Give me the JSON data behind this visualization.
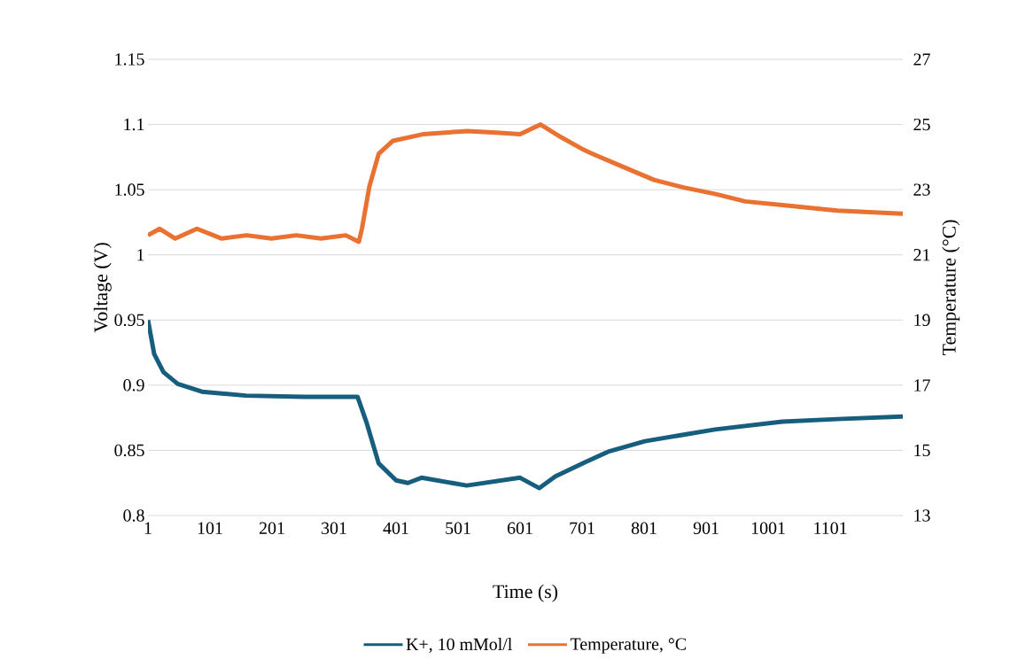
{
  "chart_data": {
    "type": "line",
    "xlabel": "Time (s)",
    "ylabel": "Voltage (V)",
    "y2label": "Temperature (°C)",
    "xlim": [
      1,
      1218
    ],
    "xticks": [
      1,
      101,
      201,
      301,
      401,
      501,
      601,
      701,
      801,
      901,
      1001,
      1101
    ],
    "ylim": [
      0.8,
      1.15
    ],
    "yticks": [
      0.8,
      0.85,
      0.9,
      0.95,
      1,
      1.05,
      1.1,
      1.15
    ],
    "y2lim": [
      13,
      27
    ],
    "y2ticks": [
      13,
      15,
      17,
      19,
      21,
      23,
      25,
      27
    ],
    "grid": "y",
    "legend": "bottom",
    "series": [
      {
        "name": "K+, 10 mMol/l",
        "color": "#175e7e",
        "x": [
          1,
          11,
          26,
          49,
          88,
          159,
          253,
          339,
          353,
          373,
          401,
          420,
          442,
          515,
          601,
          632,
          658,
          706,
          743,
          802,
          915,
          1024,
          1112,
          1218
        ],
        "values": [
          0.95,
          0.924,
          0.91,
          0.901,
          0.895,
          0.892,
          0.891,
          0.891,
          0.872,
          0.84,
          0.827,
          0.825,
          0.829,
          0.823,
          0.829,
          0.821,
          0.83,
          0.841,
          0.849,
          0.857,
          0.866,
          0.872,
          0.874,
          0.876
        ]
      },
      {
        "name": "Temperature, °C",
        "color": "#e97132",
        "axis": "y2",
        "x": [
          1,
          20,
          45,
          80,
          120,
          160,
          200,
          240,
          280,
          320,
          341,
          346,
          358,
          373,
          396,
          444,
          516,
          563,
          601,
          634,
          668,
          701,
          718,
          767,
          817,
          866,
          915,
          964,
          1038,
          1112,
          1218
        ],
        "values": [
          21.6,
          21.8,
          21.5,
          21.8,
          21.5,
          21.6,
          21.5,
          21.6,
          21.5,
          21.6,
          21.4,
          21.8,
          23.1,
          24.1,
          24.5,
          24.7,
          24.8,
          24.75,
          24.7,
          25.0,
          24.6,
          24.25,
          24.1,
          23.7,
          23.3,
          23.06,
          22.87,
          22.64,
          22.5,
          22.36,
          22.26
        ]
      }
    ]
  }
}
